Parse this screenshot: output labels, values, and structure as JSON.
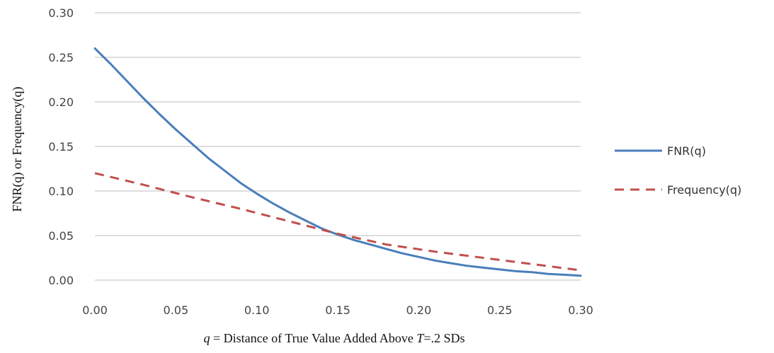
{
  "chart_data": {
    "type": "line",
    "title": "",
    "ylabel": "FNR(q) or Frequency(q)",
    "xlabel": {
      "q": "q",
      "mid": " = Distance of True Value Added Above ",
      "T": "T",
      "tail": "=.2 SDs"
    },
    "x_ticks": [
      "0.00",
      "0.05",
      "0.10",
      "0.15",
      "0.20",
      "0.25",
      "0.30"
    ],
    "y_ticks": [
      "0.00",
      "0.05",
      "0.10",
      "0.15",
      "0.20",
      "0.25",
      "0.30"
    ],
    "xlim": [
      0,
      0.3
    ],
    "ylim": [
      0,
      0.3
    ],
    "grid": "horizontal",
    "legend_position": "right",
    "series": [
      {
        "name": "FNR(q)",
        "color": "#4a7ebb",
        "style": "solid",
        "x": [
          0.0,
          0.01,
          0.02,
          0.03,
          0.04,
          0.05,
          0.06,
          0.07,
          0.08,
          0.09,
          0.1,
          0.11,
          0.12,
          0.13,
          0.14,
          0.15,
          0.16,
          0.17,
          0.18,
          0.19,
          0.2,
          0.21,
          0.22,
          0.23,
          0.24,
          0.25,
          0.26,
          0.27,
          0.28,
          0.29,
          0.3
        ],
        "values": [
          0.26,
          0.242,
          0.223,
          0.204,
          0.186,
          0.169,
          0.153,
          0.137,
          0.123,
          0.109,
          0.097,
          0.086,
          0.076,
          0.067,
          0.058,
          0.051,
          0.045,
          0.04,
          0.035,
          0.03,
          0.026,
          0.022,
          0.019,
          0.016,
          0.014,
          0.012,
          0.01,
          0.009,
          0.007,
          0.006,
          0.005
        ]
      },
      {
        "name": "Frequency(q)",
        "color": "#c0504d",
        "style": "dashed",
        "x": [
          0.0,
          0.03,
          0.06,
          0.09,
          0.12,
          0.15,
          0.18,
          0.21,
          0.24,
          0.27,
          0.3
        ],
        "values": [
          0.12,
          0.107,
          0.093,
          0.08,
          0.066,
          0.052,
          0.04,
          0.032,
          0.025,
          0.018,
          0.011
        ]
      }
    ]
  }
}
